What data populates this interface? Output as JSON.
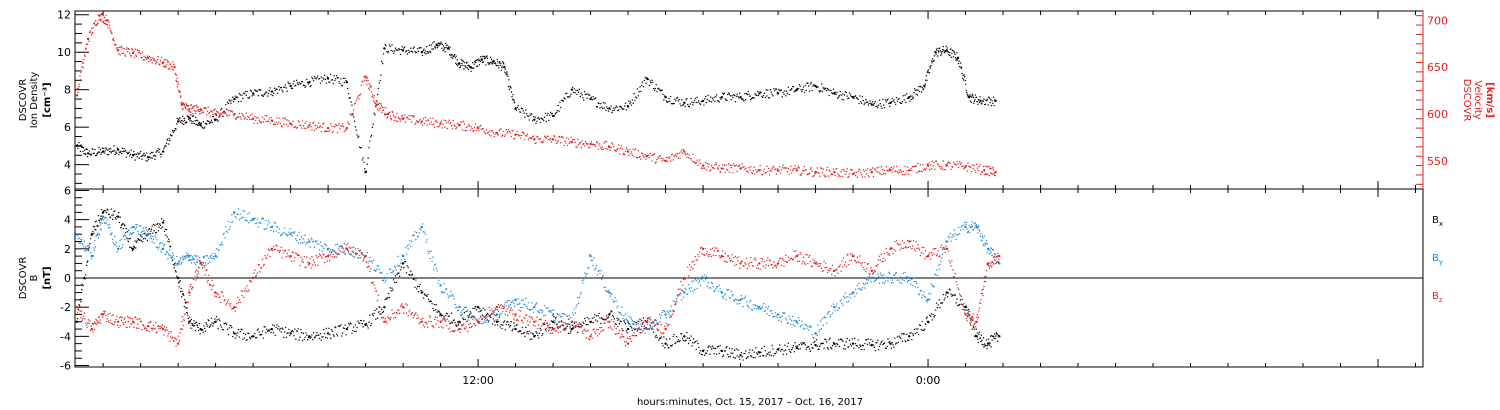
{
  "chart_data": [
    {
      "type": "scatter",
      "panel": "top",
      "x_axis": {
        "unit": "hours since 00:00 Oct. 15, 2017",
        "range": [
          1.25,
          37.2
        ]
      },
      "left_axis": {
        "label_lines": [
          "DSCOVR",
          "Ion Density",
          "[cm⁻³]"
        ],
        "range": [
          2.7,
          12.2
        ],
        "tick_values": [
          4,
          6,
          8,
          10,
          12
        ],
        "color": "#000000"
      },
      "right_axis": {
        "label_lines": [
          "DSCOVR",
          "Velocity",
          "[km/s]"
        ],
        "range": [
          520,
          710
        ],
        "tick_values": [
          550,
          600,
          650,
          700
        ],
        "color": "#e02020"
      },
      "series": [
        {
          "axis": "left",
          "color": "#000000",
          "x": [
            1.3,
            1.6,
            2.0,
            2.4,
            2.8,
            3.2,
            3.6,
            4.0,
            4.3,
            4.6,
            5.0,
            5.5,
            6.0,
            6.5,
            7.0,
            7.5,
            8.0,
            8.5,
            9.0,
            9.5,
            10.0,
            10.5,
            10.9,
            11.2,
            11.5,
            11.8,
            12.1,
            12.4,
            12.7,
            13.0,
            13.5,
            14.0,
            14.5,
            15.0,
            15.5,
            16.0,
            16.5,
            17.0,
            17.5,
            18.0,
            18.5,
            19.0,
            19.5,
            20.0,
            20.5,
            21.0,
            21.5,
            22.0,
            22.5,
            23.0,
            23.5,
            23.9,
            24.2,
            24.5,
            24.8,
            25.1,
            25.4,
            25.8
          ],
          "y": [
            5.0,
            4.6,
            4.7,
            4.8,
            4.5,
            4.4,
            4.7,
            6.3,
            6.5,
            6.1,
            6.4,
            7.5,
            7.8,
            7.9,
            8.2,
            8.4,
            8.6,
            8.4,
            3.6,
            10.2,
            10.1,
            10.0,
            10.4,
            10.2,
            9.4,
            9.2,
            9.6,
            9.5,
            9.2,
            7.0,
            6.4,
            6.6,
            8.0,
            7.5,
            7.0,
            7.1,
            8.6,
            7.6,
            7.3,
            7.4,
            7.6,
            7.6,
            7.8,
            7.8,
            8.0,
            8.2,
            7.8,
            7.6,
            7.2,
            7.3,
            7.6,
            8.2,
            10.0,
            10.1,
            9.7,
            7.6,
            7.4,
            7.4
          ]
        },
        {
          "axis": "right",
          "color": "#e02020",
          "x": [
            1.3,
            1.6,
            1.9,
            2.1,
            2.4,
            2.8,
            3.2,
            3.6,
            3.9,
            4.1,
            4.3,
            4.6,
            5.0,
            5.5,
            6.0,
            6.5,
            7.0,
            7.5,
            8.0,
            8.5,
            9.0,
            9.3,
            9.6,
            10.0,
            10.5,
            11.0,
            11.5,
            12.0,
            12.5,
            13.0,
            13.5,
            14.0,
            14.5,
            15.0,
            15.5,
            16.0,
            16.5,
            17.0,
            17.5,
            18.0,
            18.5,
            19.0,
            19.5,
            20.0,
            20.5,
            21.0,
            21.5,
            22.0,
            22.5,
            23.0,
            23.5,
            24.0,
            24.5,
            25.0,
            25.5,
            25.8
          ],
          "y": [
            620,
            680,
            705,
            700,
            668,
            665,
            660,
            655,
            650,
            610,
            605,
            605,
            600,
            600,
            595,
            593,
            590,
            588,
            585,
            585,
            640,
            610,
            600,
            595,
            592,
            590,
            588,
            585,
            580,
            578,
            573,
            573,
            570,
            568,
            565,
            560,
            555,
            550,
            560,
            545,
            542,
            542,
            540,
            540,
            540,
            538,
            538,
            536,
            538,
            540,
            540,
            545,
            545,
            544,
            540,
            538
          ]
        }
      ]
    },
    {
      "type": "scatter",
      "panel": "bottom",
      "x_axis": {
        "unit": "hours since 00:00 Oct. 15, 2017",
        "range": [
          1.25,
          37.2
        ]
      },
      "left_axis": {
        "label_lines": [
          "DSCOVR",
          "B",
          "[nT]"
        ],
        "range": [
          -6.1,
          6.1
        ],
        "tick_values": [
          -6,
          -4,
          -2,
          0,
          2,
          4,
          6
        ],
        "color": "#000000"
      },
      "zero_line": true,
      "series": [
        {
          "name": "Bx",
          "color": "#000000",
          "x": [
            1.3,
            1.7,
            2.0,
            2.4,
            2.8,
            3.2,
            3.6,
            4.0,
            4.3,
            4.6,
            5.0,
            5.5,
            6.0,
            6.5,
            7.0,
            7.5,
            8.0,
            8.5,
            9.0,
            9.5,
            10.0,
            10.5,
            11.0,
            11.5,
            12.0,
            12.5,
            13.0,
            13.5,
            14.0,
            14.5,
            15.0,
            15.5,
            16.0,
            16.5,
            17.0,
            17.5,
            18.0,
            18.5,
            19.0,
            19.5,
            20.0,
            20.5,
            21.0,
            21.5,
            22.0,
            22.5,
            23.0,
            23.5,
            24.0,
            24.5,
            25.0,
            25.3,
            25.6,
            25.9
          ],
          "y": [
            -3.0,
            3.0,
            4.5,
            4.2,
            2.0,
            3.0,
            3.8,
            0.0,
            -3.0,
            -3.5,
            -3.0,
            -3.8,
            -4.0,
            -3.5,
            -3.8,
            -4.0,
            -3.8,
            -3.5,
            -3.2,
            -2.0,
            1.0,
            -1.0,
            -2.5,
            -3.0,
            -2.0,
            -3.0,
            -3.5,
            -4.0,
            -3.0,
            -3.5,
            -3.0,
            -2.5,
            -3.5,
            -3.0,
            -4.5,
            -4.0,
            -5.0,
            -5.0,
            -5.3,
            -5.1,
            -4.9,
            -4.8,
            -4.6,
            -4.5,
            -4.5,
            -4.6,
            -4.5,
            -4.0,
            -3.0,
            -1.0,
            -2.0,
            -4.0,
            -4.5,
            -4.0
          ]
        },
        {
          "name": "By",
          "color": "#1e88d8",
          "x": [
            1.3,
            1.7,
            2.0,
            2.4,
            2.8,
            3.2,
            3.6,
            4.0,
            4.3,
            4.6,
            5.0,
            5.5,
            6.0,
            6.5,
            7.0,
            7.5,
            8.0,
            8.5,
            9.0,
            9.5,
            10.0,
            10.5,
            11.0,
            11.5,
            12.0,
            12.5,
            13.0,
            13.5,
            14.0,
            14.5,
            15.0,
            15.5,
            16.0,
            16.5,
            17.0,
            17.5,
            18.0,
            18.5,
            19.0,
            19.5,
            20.0,
            20.5,
            21.0,
            21.5,
            22.0,
            22.5,
            23.0,
            23.5,
            24.0,
            24.5,
            25.0,
            25.3,
            25.6,
            25.9
          ],
          "y": [
            3.0,
            1.5,
            4.2,
            2.0,
            3.5,
            3.0,
            2.0,
            1.0,
            1.5,
            1.0,
            1.5,
            4.5,
            4.0,
            3.5,
            3.0,
            2.5,
            2.0,
            2.0,
            1.5,
            0.0,
            1.5,
            3.5,
            -0.5,
            -2.0,
            -3.0,
            -2.5,
            -1.5,
            -2.0,
            -2.5,
            -3.0,
            1.5,
            -1.0,
            -3.0,
            -3.5,
            -2.5,
            -1.0,
            0.0,
            -1.0,
            -1.5,
            -2.0,
            -2.5,
            -3.0,
            -3.8,
            -2.0,
            -1.0,
            0.0,
            0.0,
            0.0,
            -1.5,
            2.5,
            3.5,
            3.5,
            2.0,
            1.0
          ]
        },
        {
          "name": "Bz",
          "color": "#e02020",
          "x": [
            1.3,
            1.7,
            2.0,
            2.4,
            2.8,
            3.2,
            3.6,
            4.0,
            4.3,
            4.6,
            5.0,
            5.5,
            6.0,
            6.5,
            7.0,
            7.5,
            8.0,
            8.5,
            9.0,
            9.5,
            10.0,
            10.5,
            11.0,
            11.5,
            12.0,
            12.5,
            13.0,
            13.5,
            14.0,
            14.5,
            15.0,
            15.5,
            16.0,
            16.5,
            17.0,
            17.5,
            18.0,
            18.5,
            19.0,
            19.5,
            20.0,
            20.5,
            21.0,
            21.5,
            22.0,
            22.5,
            23.0,
            23.5,
            24.0,
            24.5,
            25.0,
            25.3,
            25.6,
            25.9
          ],
          "y": [
            -2.0,
            -3.5,
            -2.5,
            -3.0,
            -3.0,
            -3.3,
            -3.5,
            -4.5,
            -1.0,
            1.0,
            -1.0,
            -2.0,
            0.0,
            2.0,
            1.5,
            1.0,
            1.5,
            2.0,
            1.5,
            -3.0,
            -2.0,
            -3.0,
            -3.0,
            -3.5,
            -3.0,
            -2.0,
            -2.5,
            -3.0,
            -3.5,
            -3.0,
            -4.0,
            -3.0,
            -4.5,
            -3.0,
            -3.5,
            0.0,
            2.0,
            1.5,
            1.0,
            1.0,
            1.0,
            1.5,
            1.0,
            0.5,
            1.5,
            0.5,
            2.0,
            2.5,
            1.5,
            2.0,
            -2.5,
            -3.0,
            1.0,
            1.5
          ]
        }
      ]
    }
  ],
  "x_axis_shared": {
    "major_ticks": [
      {
        "hour": 12,
        "label": "12:00"
      },
      {
        "hour": 24,
        "label": "0:00"
      }
    ],
    "title": "hours:minutes, Oct. 15, 2017 – Oct. 16, 2017"
  },
  "legend": {
    "items": [
      {
        "base": "B",
        "sub": "x",
        "color": "#000000"
      },
      {
        "base": "B",
        "sub": "y",
        "color": "#1e88d8"
      },
      {
        "base": "B",
        "sub": "z",
        "color": "#e02020"
      }
    ]
  }
}
